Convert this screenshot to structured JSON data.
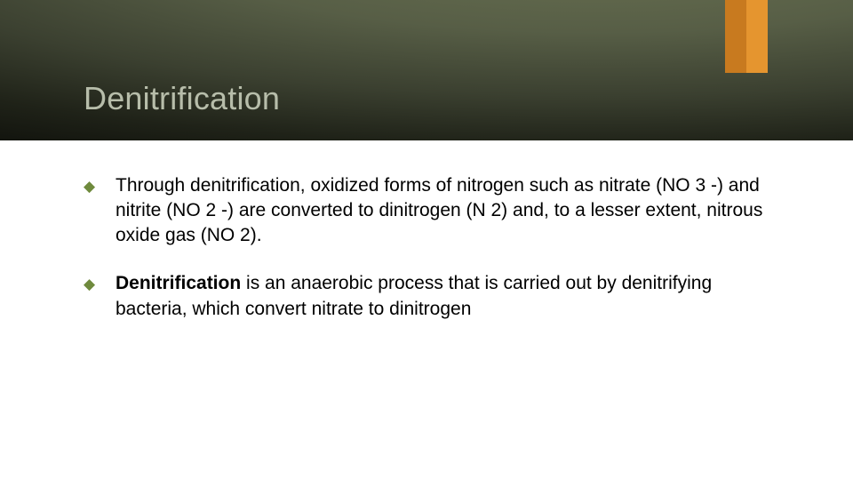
{
  "colors": {
    "accent_dark": "#c87a1f",
    "accent_light": "#e5952f",
    "title_color": "#b7bdaa",
    "bullet_marker": "#6f8a3d",
    "body_text": "#000000"
  },
  "title": "Denitrification",
  "bullets": [
    {
      "bold_lead": "",
      "text": "Through denitrification, oxidized forms of nitrogen such as nitrate (NO 3 -) and nitrite (NO 2 -) are converted to dinitrogen (N 2) and, to a lesser extent, nitrous oxide gas (NO 2)."
    },
    {
      "bold_lead": "Denitrification",
      "text": " is an anaerobic process that is carried out by denitrifying bacteria, which convert nitrate to dinitrogen"
    }
  ]
}
